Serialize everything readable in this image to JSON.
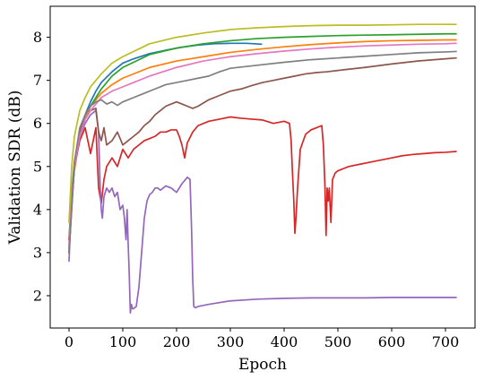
{
  "chart_data": {
    "type": "line",
    "xlabel": "Epoch",
    "ylabel": "Validation SDR (dB)",
    "xlim": [
      -35,
      755
    ],
    "ylim": [
      1.25,
      8.72
    ],
    "xticks": [
      0,
      100,
      200,
      300,
      400,
      500,
      600,
      700
    ],
    "yticks": [
      2,
      3,
      4,
      5,
      6,
      7,
      8
    ],
    "grid": false,
    "legend": "none",
    "series": [
      {
        "color": "#1f77b4",
        "x": [
          0,
          5,
          10,
          20,
          30,
          40,
          50,
          60,
          80,
          100,
          120,
          150,
          180,
          210,
          240,
          270,
          300,
          330,
          358
        ],
        "y": [
          3.1,
          4.3,
          5.0,
          5.8,
          6.2,
          6.5,
          6.75,
          6.95,
          7.2,
          7.4,
          7.5,
          7.62,
          7.7,
          7.77,
          7.82,
          7.85,
          7.86,
          7.86,
          7.84
        ]
      },
      {
        "color": "#ff7f0e",
        "x": [
          0,
          5,
          10,
          20,
          30,
          40,
          50,
          60,
          80,
          100,
          150,
          200,
          250,
          300,
          350,
          400,
          450,
          500,
          550,
          600,
          650,
          700,
          720
        ],
        "y": [
          3.0,
          4.2,
          4.9,
          5.7,
          6.1,
          6.4,
          6.55,
          6.7,
          6.9,
          7.05,
          7.3,
          7.45,
          7.55,
          7.65,
          7.72,
          7.78,
          7.83,
          7.87,
          7.9,
          7.92,
          7.93,
          7.94,
          7.94
        ]
      },
      {
        "color": "#2ca02c",
        "x": [
          0,
          5,
          10,
          20,
          30,
          40,
          50,
          60,
          80,
          100,
          150,
          200,
          250,
          300,
          350,
          400,
          450,
          500,
          550,
          600,
          650,
          700,
          720
        ],
        "y": [
          3.3,
          4.4,
          5.1,
          5.8,
          6.2,
          6.4,
          6.6,
          6.8,
          7.1,
          7.3,
          7.6,
          7.75,
          7.85,
          7.92,
          7.97,
          8.0,
          8.02,
          8.04,
          8.05,
          8.06,
          8.07,
          8.08,
          8.08
        ]
      },
      {
        "color": "#d62728",
        "x": [
          0,
          10,
          20,
          30,
          40,
          50,
          55,
          60,
          65,
          70,
          80,
          90,
          100,
          110,
          120,
          130,
          140,
          150,
          160,
          170,
          180,
          190,
          200,
          205,
          210,
          215,
          220,
          230,
          240,
          260,
          280,
          300,
          320,
          340,
          360,
          380,
          400,
          410,
          413,
          415,
          418,
          420,
          422,
          425,
          430,
          440,
          450,
          460,
          470,
          473,
          476,
          478,
          480,
          482,
          484,
          487,
          490,
          495,
          500,
          520,
          540,
          560,
          580,
          600,
          620,
          640,
          660,
          680,
          700,
          720
        ],
        "y": [
          3.3,
          5.0,
          5.6,
          5.9,
          5.3,
          5.9,
          4.5,
          4.15,
          4.7,
          5.0,
          5.2,
          5.0,
          5.4,
          5.2,
          5.4,
          5.5,
          5.6,
          5.65,
          5.7,
          5.8,
          5.8,
          5.85,
          5.85,
          5.7,
          5.5,
          5.2,
          5.55,
          5.8,
          5.95,
          6.05,
          6.1,
          6.15,
          6.12,
          6.1,
          6.08,
          6.0,
          6.05,
          6.0,
          5.6,
          5.0,
          4.2,
          3.45,
          3.8,
          4.5,
          5.4,
          5.75,
          5.85,
          5.9,
          5.95,
          5.5,
          4.5,
          3.4,
          4.5,
          4.2,
          4.5,
          3.7,
          4.7,
          4.85,
          4.9,
          5.0,
          5.05,
          5.1,
          5.15,
          5.2,
          5.25,
          5.28,
          5.3,
          5.32,
          5.33,
          5.35
        ]
      },
      {
        "color": "#9467bd",
        "x": [
          0,
          5,
          10,
          20,
          30,
          40,
          50,
          55,
          58,
          60,
          62,
          65,
          70,
          75,
          80,
          85,
          90,
          95,
          100,
          103,
          106,
          108,
          110,
          112,
          114,
          116,
          118,
          120,
          125,
          130,
          135,
          140,
          145,
          150,
          155,
          160,
          165,
          170,
          175,
          180,
          190,
          200,
          210,
          220,
          225,
          228,
          230,
          232,
          235,
          240,
          260,
          300,
          350,
          400,
          450,
          500,
          550,
          600,
          650,
          700,
          720
        ],
        "y": [
          2.8,
          4.3,
          5.0,
          5.7,
          6.0,
          6.2,
          6.3,
          5.8,
          4.5,
          4.0,
          3.8,
          4.3,
          4.5,
          4.4,
          4.5,
          4.3,
          4.4,
          4.0,
          4.1,
          3.8,
          3.3,
          4.0,
          3.2,
          2.5,
          1.6,
          1.8,
          1.7,
          1.7,
          1.75,
          2.2,
          3.0,
          3.8,
          4.2,
          4.35,
          4.4,
          4.5,
          4.5,
          4.45,
          4.5,
          4.55,
          4.5,
          4.4,
          4.6,
          4.75,
          4.7,
          3.5,
          2.4,
          1.75,
          1.72,
          1.75,
          1.8,
          1.88,
          1.92,
          1.94,
          1.95,
          1.95,
          1.95,
          1.96,
          1.96,
          1.96,
          1.96
        ]
      },
      {
        "color": "#8c564b",
        "x": [
          0,
          10,
          20,
          30,
          40,
          50,
          55,
          60,
          65,
          70,
          80,
          90,
          100,
          110,
          120,
          130,
          140,
          150,
          160,
          170,
          180,
          190,
          200,
          210,
          220,
          230,
          240,
          260,
          280,
          300,
          320,
          340,
          360,
          380,
          400,
          420,
          440,
          460,
          480,
          500,
          550,
          600,
          650,
          700,
          720
        ],
        "y": [
          3.0,
          5.0,
          5.8,
          6.1,
          6.3,
          6.35,
          5.8,
          5.6,
          5.9,
          5.5,
          5.6,
          5.8,
          5.5,
          5.6,
          5.7,
          5.8,
          5.95,
          6.05,
          6.2,
          6.3,
          6.4,
          6.45,
          6.5,
          6.45,
          6.4,
          6.35,
          6.4,
          6.55,
          6.65,
          6.75,
          6.8,
          6.88,
          6.95,
          7.0,
          7.05,
          7.1,
          7.15,
          7.18,
          7.2,
          7.23,
          7.3,
          7.38,
          7.45,
          7.5,
          7.52
        ]
      },
      {
        "color": "#e377c2",
        "x": [
          0,
          5,
          10,
          20,
          30,
          40,
          50,
          60,
          80,
          100,
          120,
          150,
          200,
          250,
          300,
          350,
          400,
          450,
          500,
          550,
          600,
          650,
          700,
          720
        ],
        "y": [
          3.2,
          4.3,
          5.0,
          5.7,
          6.1,
          6.3,
          6.45,
          6.6,
          6.75,
          6.85,
          6.95,
          7.1,
          7.3,
          7.45,
          7.55,
          7.62,
          7.68,
          7.73,
          7.77,
          7.8,
          7.82,
          7.84,
          7.85,
          7.86
        ]
      },
      {
        "color": "#7f7f7f",
        "x": [
          0,
          10,
          20,
          30,
          40,
          50,
          60,
          70,
          80,
          90,
          100,
          110,
          120,
          140,
          160,
          180,
          200,
          220,
          240,
          260,
          280,
          300,
          350,
          400,
          450,
          500,
          550,
          600,
          650,
          700,
          720
        ],
        "y": [
          3.0,
          5.1,
          5.9,
          6.2,
          6.4,
          6.5,
          6.55,
          6.45,
          6.5,
          6.42,
          6.5,
          6.55,
          6.6,
          6.7,
          6.8,
          6.9,
          6.95,
          7.0,
          7.05,
          7.1,
          7.2,
          7.28,
          7.35,
          7.42,
          7.48,
          7.52,
          7.56,
          7.6,
          7.64,
          7.66,
          7.67
        ]
      },
      {
        "color": "#bcbd22",
        "x": [
          0,
          5,
          10,
          20,
          30,
          40,
          50,
          60,
          80,
          100,
          150,
          200,
          250,
          300,
          350,
          400,
          450,
          500,
          550,
          600,
          650,
          700,
          720
        ],
        "y": [
          3.7,
          5.0,
          5.7,
          6.3,
          6.6,
          6.85,
          7.0,
          7.15,
          7.4,
          7.55,
          7.85,
          8.0,
          8.1,
          8.18,
          8.22,
          8.25,
          8.27,
          8.28,
          8.28,
          8.29,
          8.3,
          8.3,
          8.3
        ]
      },
      {
        "color": "#17becf",
        "x": [],
        "y": []
      }
    ]
  }
}
